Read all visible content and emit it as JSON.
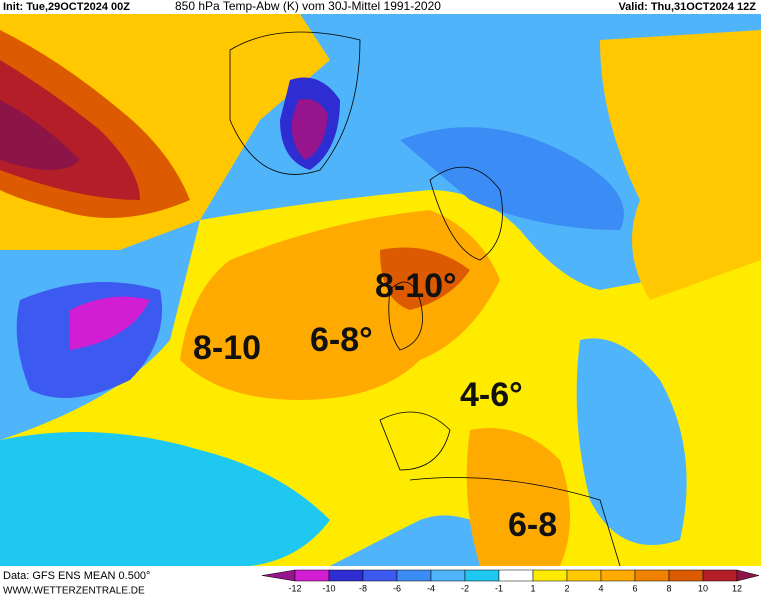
{
  "header": {
    "init": "Init: Tue,29OCT2024 00Z",
    "title": "850 hPa Temp-Abw (K) vom 30J-Mittel 1991-2020",
    "valid": "Valid: Thu,31OCT2024 12Z"
  },
  "annotations": [
    "8-10°",
    "8-10",
    "6-8°",
    "4-6°",
    "6-8"
  ],
  "footer": {
    "data": "Data: GFS ENS MEAN 0.500°",
    "site": "WWW.WETTERZENTRALE.DE"
  },
  "colorbar": {
    "ticks": [
      -12,
      -10,
      -8,
      -6,
      -4,
      -2,
      -1,
      1,
      2,
      4,
      6,
      8,
      10,
      12
    ],
    "colors": [
      "#96148c",
      "#d21ed2",
      "#2d2dd2",
      "#3c5af0",
      "#3c8cf5",
      "#50b4fa",
      "#1ec8f0",
      "#ffffff",
      "#ffeb00",
      "#ffc800",
      "#ffaa00",
      "#f08200",
      "#dc5a00",
      "#b41e28",
      "#8c1446"
    ]
  }
}
